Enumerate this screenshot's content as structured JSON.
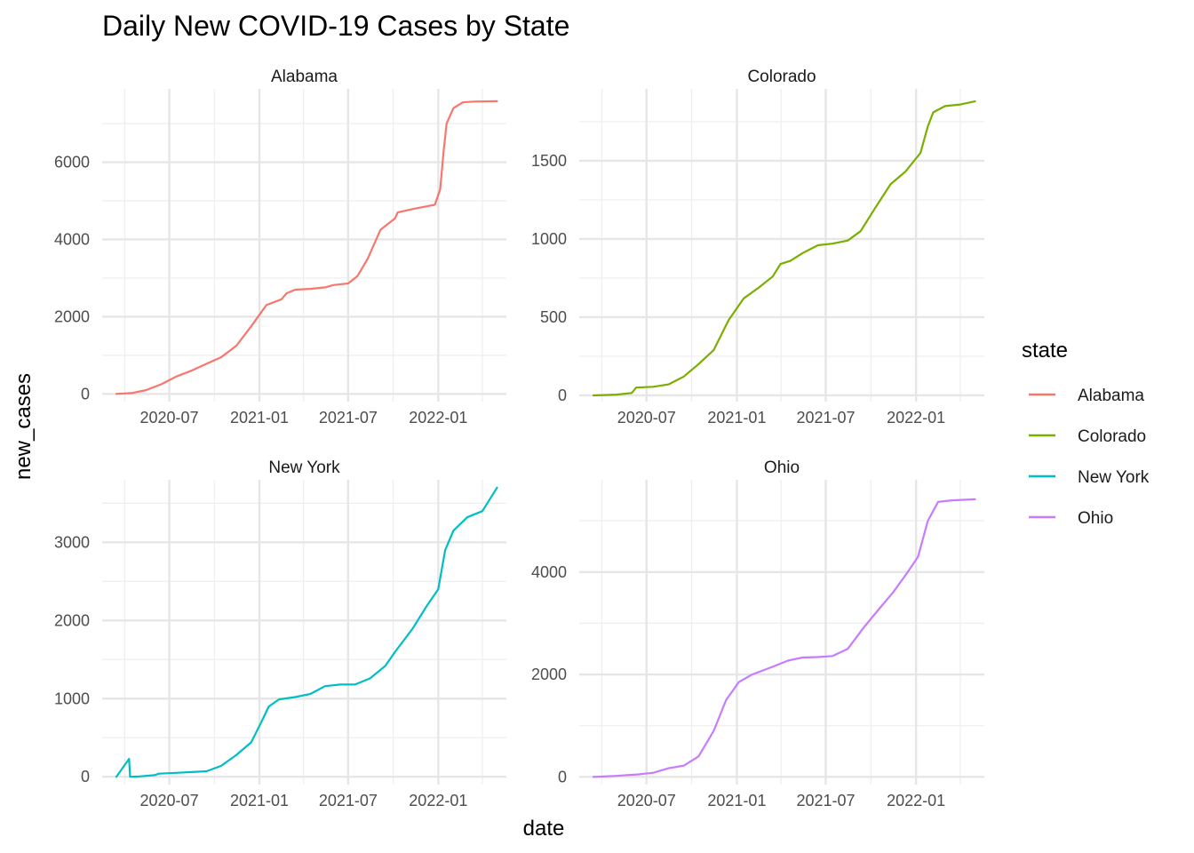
{
  "chart_data": {
    "type": "line",
    "title": "Daily New COVID-19 Cases by State",
    "xlabel": "date",
    "ylabel": "new_cases",
    "legend": {
      "title": "state",
      "position": "right"
    },
    "x_ticks": [
      "2020-07",
      "2021-01",
      "2021-07",
      "2022-01"
    ],
    "grid": true,
    "facets": [
      {
        "name": "Alabama",
        "color": "#F8766D",
        "ylim": [
          -200,
          7900
        ],
        "y_ticks": [
          0,
          2000,
          4000,
          6000
        ],
        "points": [
          [
            "2020-03-15",
            0
          ],
          [
            "2020-04-15",
            20
          ],
          [
            "2020-05-15",
            100
          ],
          [
            "2020-06-15",
            250
          ],
          [
            "2020-07-15",
            450
          ],
          [
            "2020-08-15",
            600
          ],
          [
            "2020-09-15",
            780
          ],
          [
            "2020-10-15",
            950
          ],
          [
            "2020-11-15",
            1250
          ],
          [
            "2020-12-15",
            1750
          ],
          [
            "2021-01-15",
            2300
          ],
          [
            "2021-02-15",
            2450
          ],
          [
            "2021-02-25",
            2600
          ],
          [
            "2021-03-15",
            2700
          ],
          [
            "2021-04-15",
            2720
          ],
          [
            "2021-05-15",
            2760
          ],
          [
            "2021-06-01",
            2820
          ],
          [
            "2021-07-01",
            2860
          ],
          [
            "2021-07-20",
            3050
          ],
          [
            "2021-08-10",
            3500
          ],
          [
            "2021-09-05",
            4250
          ],
          [
            "2021-10-05",
            4550
          ],
          [
            "2021-10-10",
            4700
          ],
          [
            "2021-11-15",
            4800
          ],
          [
            "2021-12-25",
            4900
          ],
          [
            "2022-01-05",
            5300
          ],
          [
            "2022-01-12",
            6300
          ],
          [
            "2022-01-18",
            7000
          ],
          [
            "2022-02-01",
            7400
          ],
          [
            "2022-02-20",
            7550
          ],
          [
            "2022-03-15",
            7570
          ],
          [
            "2022-05-01",
            7580
          ]
        ]
      },
      {
        "name": "Colorado",
        "color": "#7CAE00",
        "ylim": [
          -40,
          1960
        ],
        "y_ticks": [
          0,
          500,
          1000,
          1500
        ],
        "points": [
          [
            "2020-03-15",
            0
          ],
          [
            "2020-05-01",
            5
          ],
          [
            "2020-06-01",
            15
          ],
          [
            "2020-06-10",
            50
          ],
          [
            "2020-07-15",
            55
          ],
          [
            "2020-08-15",
            70
          ],
          [
            "2020-09-15",
            120
          ],
          [
            "2020-10-15",
            200
          ],
          [
            "2020-11-15",
            290
          ],
          [
            "2020-12-15",
            480
          ],
          [
            "2021-01-15",
            620
          ],
          [
            "2021-02-15",
            690
          ],
          [
            "2021-03-15",
            760
          ],
          [
            "2021-03-31",
            840
          ],
          [
            "2021-04-20",
            860
          ],
          [
            "2021-05-15",
            910
          ],
          [
            "2021-06-15",
            960
          ],
          [
            "2021-07-15",
            970
          ],
          [
            "2021-08-15",
            990
          ],
          [
            "2021-09-10",
            1050
          ],
          [
            "2021-10-10",
            1200
          ],
          [
            "2021-11-10",
            1350
          ],
          [
            "2021-12-10",
            1430
          ],
          [
            "2022-01-10",
            1550
          ],
          [
            "2022-01-25",
            1720
          ],
          [
            "2022-02-05",
            1810
          ],
          [
            "2022-03-01",
            1850
          ],
          [
            "2022-04-01",
            1860
          ],
          [
            "2022-05-01",
            1880
          ]
        ]
      },
      {
        "name": "New York",
        "color": "#00BFC4",
        "ylim": [
          -100,
          3800
        ],
        "y_ticks": [
          0,
          1000,
          2000,
          3000
        ],
        "points": [
          [
            "2020-03-15",
            0
          ],
          [
            "2020-04-10",
            230
          ],
          [
            "2020-04-12",
            0
          ],
          [
            "2020-05-01",
            5
          ],
          [
            "2020-06-01",
            20
          ],
          [
            "2020-06-10",
            40
          ],
          [
            "2020-07-15",
            50
          ],
          [
            "2020-08-15",
            60
          ],
          [
            "2020-09-15",
            70
          ],
          [
            "2020-10-15",
            140
          ],
          [
            "2020-11-15",
            280
          ],
          [
            "2020-12-15",
            440
          ],
          [
            "2021-01-05",
            700
          ],
          [
            "2021-01-20",
            900
          ],
          [
            "2021-02-10",
            990
          ],
          [
            "2021-03-15",
            1020
          ],
          [
            "2021-04-15",
            1060
          ],
          [
            "2021-05-15",
            1160
          ],
          [
            "2021-06-15",
            1180
          ],
          [
            "2021-07-15",
            1180
          ],
          [
            "2021-08-15",
            1260
          ],
          [
            "2021-09-15",
            1420
          ],
          [
            "2021-10-05",
            1600
          ],
          [
            "2021-11-10",
            1900
          ],
          [
            "2021-12-10",
            2200
          ],
          [
            "2022-01-01",
            2400
          ],
          [
            "2022-01-15",
            2900
          ],
          [
            "2022-02-01",
            3150
          ],
          [
            "2022-03-01",
            3320
          ],
          [
            "2022-04-01",
            3400
          ],
          [
            "2022-05-01",
            3700
          ]
        ]
      },
      {
        "name": "Ohio",
        "color": "#C77CFF",
        "ylim": [
          -150,
          5800
        ],
        "y_ticks": [
          0,
          2000,
          4000
        ],
        "points": [
          [
            "2020-03-15",
            0
          ],
          [
            "2020-05-01",
            20
          ],
          [
            "2020-06-15",
            50
          ],
          [
            "2020-07-15",
            80
          ],
          [
            "2020-08-15",
            170
          ],
          [
            "2020-09-15",
            220
          ],
          [
            "2020-10-15",
            400
          ],
          [
            "2020-11-15",
            900
          ],
          [
            "2020-12-10",
            1500
          ],
          [
            "2021-01-05",
            1850
          ],
          [
            "2021-02-01",
            2000
          ],
          [
            "2021-03-15",
            2150
          ],
          [
            "2021-04-15",
            2270
          ],
          [
            "2021-05-15",
            2330
          ],
          [
            "2021-06-15",
            2340
          ],
          [
            "2021-07-15",
            2360
          ],
          [
            "2021-08-15",
            2500
          ],
          [
            "2021-09-15",
            2900
          ],
          [
            "2021-10-15",
            3250
          ],
          [
            "2021-11-15",
            3600
          ],
          [
            "2021-12-15",
            4000
          ],
          [
            "2022-01-05",
            4300
          ],
          [
            "2022-01-25",
            5000
          ],
          [
            "2022-02-15",
            5370
          ],
          [
            "2022-03-15",
            5400
          ],
          [
            "2022-05-01",
            5420
          ]
        ]
      }
    ]
  }
}
